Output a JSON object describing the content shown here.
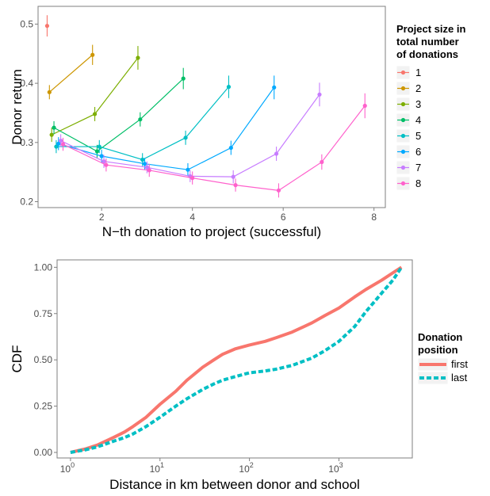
{
  "chart_data": [
    {
      "type": "line",
      "xlabel": "N−th donation to project (successful)",
      "ylabel": "Donor return",
      "xlim": [
        0.6,
        8.25
      ],
      "ylim": [
        0.19,
        0.53
      ],
      "xticks": [
        2,
        4,
        6,
        8
      ],
      "xtick_labels": [
        "2",
        "4",
        "6",
        "8"
      ],
      "yticks": [
        0.2,
        0.3,
        0.4,
        0.5
      ],
      "ytick_labels": [
        "0.2",
        "0.3",
        "0.4",
        "0.5"
      ],
      "grid": true,
      "legend_position": "right",
      "legend_title": [
        "Project size in",
        "total number",
        "of donations"
      ],
      "series": [
        {
          "name": "1",
          "color": "#F8766D",
          "x": [
            0.8
          ],
          "y": [
            0.497
          ],
          "err": [
            0.018
          ]
        },
        {
          "name": "2",
          "color": "#CD9600",
          "x": [
            0.85,
            1.8
          ],
          "y": [
            0.385,
            0.448
          ],
          "err": [
            0.012,
            0.017
          ]
        },
        {
          "name": "3",
          "color": "#7CAE00",
          "x": [
            0.9,
            1.85,
            2.8
          ],
          "y": [
            0.313,
            0.348,
            0.443
          ],
          "err": [
            0.012,
            0.012,
            0.02
          ]
        },
        {
          "name": "4",
          "color": "#00BE67",
          "x": [
            0.95,
            1.9,
            2.85,
            3.8
          ],
          "y": [
            0.325,
            0.285,
            0.339,
            0.408
          ],
          "err": [
            0.011,
            0.011,
            0.012,
            0.018
          ]
        },
        {
          "name": "5",
          "color": "#00BFC4",
          "x": [
            1.0,
            1.95,
            2.9,
            3.85,
            4.8
          ],
          "y": [
            0.293,
            0.293,
            0.271,
            0.308,
            0.394
          ],
          "err": [
            0.011,
            0.011,
            0.011,
            0.012,
            0.019
          ]
        },
        {
          "name": "6",
          "color": "#00A9FF",
          "x": [
            1.05,
            2.0,
            2.95,
            3.9,
            4.85,
            5.8
          ],
          "y": [
            0.298,
            0.277,
            0.264,
            0.254,
            0.291,
            0.393
          ],
          "err": [
            0.011,
            0.011,
            0.01,
            0.011,
            0.012,
            0.02
          ]
        },
        {
          "name": "7",
          "color": "#C77CFF",
          "x": [
            1.1,
            2.05,
            3.0,
            3.95,
            4.9,
            5.85,
            6.8
          ],
          "y": [
            0.303,
            0.268,
            0.258,
            0.243,
            0.242,
            0.281,
            0.381
          ],
          "err": [
            0.011,
            0.011,
            0.01,
            0.01,
            0.011,
            0.012,
            0.02
          ]
        },
        {
          "name": "8",
          "color": "#FF61CC",
          "x": [
            1.15,
            2.1,
            3.05,
            4.0,
            4.95,
            5.9,
            6.85,
            7.8
          ],
          "y": [
            0.297,
            0.262,
            0.253,
            0.24,
            0.228,
            0.219,
            0.267,
            0.362
          ],
          "err": [
            0.011,
            0.011,
            0.011,
            0.011,
            0.011,
            0.012,
            0.013,
            0.021
          ]
        }
      ]
    },
    {
      "type": "line",
      "xlabel": "Distance in km between donor and school",
      "ylabel": "CDF",
      "xscale": "log10",
      "xlim_log10": [
        -0.15,
        3.82
      ],
      "ylim": [
        -0.03,
        1.04
      ],
      "xticks_log10": [
        0,
        1,
        2,
        3
      ],
      "xtick_base": "10",
      "xtick_exponents": [
        "0",
        "1",
        "2",
        "3"
      ],
      "yticks": [
        0.0,
        0.25,
        0.5,
        0.75,
        1.0
      ],
      "ytick_labels": [
        "0.00",
        "0.25",
        "0.50",
        "0.75",
        "1.00"
      ],
      "grid": true,
      "legend_position": "right",
      "legend_title": [
        "Donation",
        "position"
      ],
      "series": [
        {
          "name": "first",
          "color": "#F8766D",
          "linestyle": "solid",
          "x": [
            1,
            1.5,
            2,
            3,
            4,
            5,
            7,
            10,
            15,
            20,
            30,
            40,
            50,
            70,
            100,
            150,
            200,
            300,
            500,
            700,
            1000,
            1500,
            2000,
            3000,
            4000,
            5000
          ],
          "y": [
            0.0,
            0.02,
            0.04,
            0.08,
            0.11,
            0.14,
            0.19,
            0.26,
            0.33,
            0.39,
            0.46,
            0.5,
            0.53,
            0.56,
            0.58,
            0.6,
            0.62,
            0.65,
            0.7,
            0.74,
            0.78,
            0.84,
            0.88,
            0.93,
            0.97,
            1.0
          ]
        },
        {
          "name": "last",
          "color": "#00BFC4",
          "linestyle": "dashed",
          "x": [
            1,
            1.5,
            2,
            3,
            4,
            5,
            7,
            10,
            15,
            20,
            30,
            40,
            50,
            70,
            100,
            150,
            200,
            300,
            500,
            700,
            1000,
            1500,
            2000,
            3000,
            4000,
            5000
          ],
          "y": [
            0.0,
            0.015,
            0.03,
            0.06,
            0.08,
            0.1,
            0.14,
            0.19,
            0.25,
            0.29,
            0.34,
            0.37,
            0.39,
            0.41,
            0.43,
            0.44,
            0.45,
            0.47,
            0.51,
            0.55,
            0.6,
            0.68,
            0.76,
            0.86,
            0.93,
            1.0
          ]
        }
      ]
    }
  ]
}
